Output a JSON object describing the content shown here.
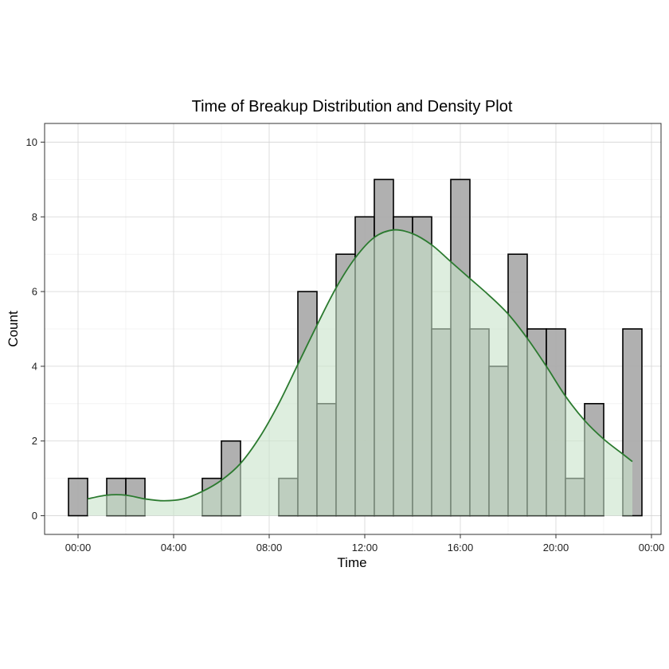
{
  "chart_data": {
    "type": "bar",
    "title": "Time of Breakup Distribution and Density Plot",
    "xlabel": "Time",
    "ylabel": "Count",
    "x_unit": "hours",
    "xlim": [
      -1.4,
      24.4
    ],
    "ylim": [
      -0.5,
      10.5
    ],
    "bin_width": 0.8,
    "bins": [
      {
        "center": 0.0,
        "count": 1
      },
      {
        "center": 0.8,
        "count": 0
      },
      {
        "center": 1.6,
        "count": 1
      },
      {
        "center": 2.4,
        "count": 1
      },
      {
        "center": 3.2,
        "count": 0
      },
      {
        "center": 4.0,
        "count": 0
      },
      {
        "center": 4.8,
        "count": 0
      },
      {
        "center": 5.6,
        "count": 1
      },
      {
        "center": 6.4,
        "count": 2
      },
      {
        "center": 7.2,
        "count": 0
      },
      {
        "center": 8.0,
        "count": 0
      },
      {
        "center": 8.8,
        "count": 1
      },
      {
        "center": 9.6,
        "count": 6
      },
      {
        "center": 10.4,
        "count": 3
      },
      {
        "center": 11.2,
        "count": 7
      },
      {
        "center": 12.0,
        "count": 8
      },
      {
        "center": 12.8,
        "count": 9
      },
      {
        "center": 13.6,
        "count": 8
      },
      {
        "center": 14.4,
        "count": 8
      },
      {
        "center": 15.2,
        "count": 5
      },
      {
        "center": 16.0,
        "count": 9
      },
      {
        "center": 16.8,
        "count": 5
      },
      {
        "center": 17.6,
        "count": 4
      },
      {
        "center": 18.4,
        "count": 7
      },
      {
        "center": 19.2,
        "count": 5
      },
      {
        "center": 20.0,
        "count": 5
      },
      {
        "center": 20.8,
        "count": 1
      },
      {
        "center": 21.6,
        "count": 3
      },
      {
        "center": 22.4,
        "count": 0
      },
      {
        "center": 23.2,
        "count": 5
      }
    ],
    "density_curve": {
      "x": [
        0.4,
        1.2,
        2.0,
        2.8,
        3.6,
        4.4,
        5.2,
        6.0,
        6.8,
        7.6,
        8.4,
        9.2,
        10.0,
        10.8,
        11.6,
        12.4,
        13.2,
        14.0,
        14.8,
        15.6,
        16.4,
        17.2,
        18.0,
        18.8,
        19.6,
        20.4,
        21.2,
        22.0,
        22.8,
        23.2
      ],
      "y": [
        0.45,
        0.55,
        0.55,
        0.45,
        0.4,
        0.45,
        0.65,
        0.95,
        1.4,
        2.1,
        3.0,
        4.05,
        5.1,
        6.1,
        6.9,
        7.45,
        7.65,
        7.55,
        7.25,
        6.8,
        6.35,
        5.9,
        5.4,
        4.75,
        4.0,
        3.2,
        2.55,
        2.05,
        1.65,
        1.45
      ]
    },
    "x_ticks": [
      {
        "value": 0,
        "label": "00:00"
      },
      {
        "value": 4,
        "label": "04:00"
      },
      {
        "value": 8,
        "label": "08:00"
      },
      {
        "value": 12,
        "label": "12:00"
      },
      {
        "value": 16,
        "label": "16:00"
      },
      {
        "value": 20,
        "label": "20:00"
      },
      {
        "value": 24,
        "label": "00:00"
      }
    ],
    "y_ticks": [
      {
        "value": 0,
        "label": "0"
      },
      {
        "value": 2,
        "label": "2"
      },
      {
        "value": 4,
        "label": "4"
      },
      {
        "value": 6,
        "label": "6"
      },
      {
        "value": 8,
        "label": "8"
      },
      {
        "value": 10,
        "label": "10"
      }
    ],
    "grid": true,
    "colors": {
      "bar_fill": "#a9a9a9",
      "bar_stroke": "#000000",
      "density_fill": "#c8e3ca",
      "density_line": "#2b7a2f"
    }
  }
}
